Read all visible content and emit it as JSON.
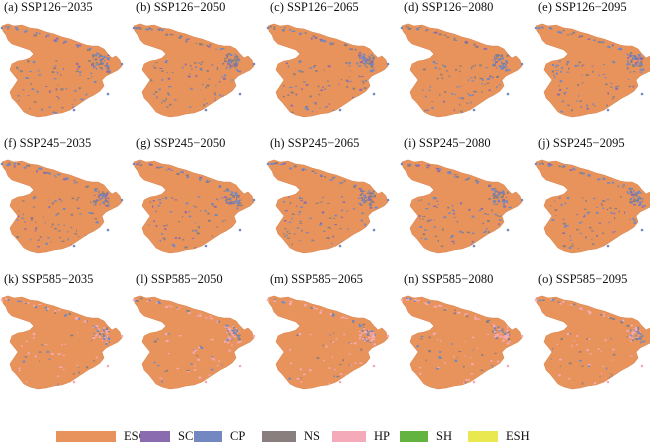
{
  "colors": {
    "ESC": "#e8935b",
    "SC": "#8b6bb0",
    "CP": "#7388c0",
    "NS": "#8a7f7f",
    "HP": "#f4aab8",
    "SH": "#62b33f",
    "ESH": "#e9e84f"
  },
  "panels": [
    {
      "title": "(a) SSP126−2035",
      "scenario": "SSP126"
    },
    {
      "title": "(b) SSP126−2050",
      "scenario": "SSP126"
    },
    {
      "title": "(c) SSP126−2065",
      "scenario": "SSP126"
    },
    {
      "title": "(d) SSP126−2080",
      "scenario": "SSP126"
    },
    {
      "title": "(e) SSP126−2095",
      "scenario": "SSP126"
    },
    {
      "title": "(f) SSP245−2035",
      "scenario": "SSP245"
    },
    {
      "title": "(g) SSP245−2050",
      "scenario": "SSP245"
    },
    {
      "title": "(h) SSP245−2065",
      "scenario": "SSP245"
    },
    {
      "title": "(i) SSP245−2080",
      "scenario": "SSP245"
    },
    {
      "title": "(j) SSP245−2095",
      "scenario": "SSP245"
    },
    {
      "title": "(k) SSP585−2035",
      "scenario": "SSP585"
    },
    {
      "title": "(l) SSP585−2050",
      "scenario": "SSP585"
    },
    {
      "title": "(m) SSP585−2065",
      "scenario": "SSP585"
    },
    {
      "title": "(n) SSP585−2080",
      "scenario": "SSP585"
    },
    {
      "title": "(o) SSP585−2095",
      "scenario": "SSP585"
    }
  ],
  "legend": [
    {
      "label": "ESC",
      "color": "#e8935b"
    },
    {
      "label": "SC",
      "color": "#8b6bb0"
    },
    {
      "label": "CP",
      "color": "#7388c0"
    },
    {
      "label": "NS",
      "color": "#8a7f7f"
    },
    {
      "label": "HP",
      "color": "#f4aab8"
    },
    {
      "label": "SH",
      "color": "#62b33f"
    },
    {
      "label": "ESH",
      "color": "#e9e84f"
    }
  ]
}
